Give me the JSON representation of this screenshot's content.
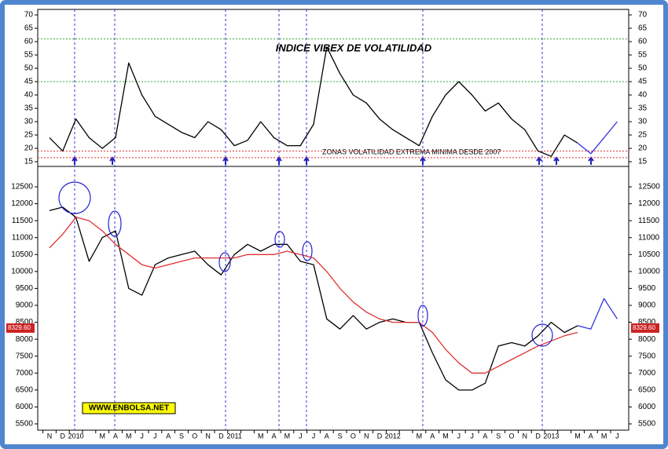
{
  "chart_data": [
    {
      "type": "line",
      "title": "INDICE VIBEX DE VOLATILIDAD",
      "annotation": "ZONAS VOLATILIDAD EXTREMA MINIMA DESDE 2007",
      "ylim": [
        15,
        70
      ],
      "yticks": [
        15,
        20,
        25,
        30,
        35,
        40,
        45,
        50,
        55,
        60,
        65,
        70
      ],
      "hlines": [
        {
          "value": 61,
          "color": "#33aa33"
        },
        {
          "value": 45,
          "color": "#33aa33"
        },
        {
          "value": 19,
          "color": "#dd3333"
        },
        {
          "value": 16.5,
          "color": "#dd3333"
        }
      ],
      "series": [
        {
          "color": "#000000",
          "values": [
            24,
            19,
            31,
            24,
            20,
            24,
            52,
            40,
            32,
            29,
            26,
            24,
            30,
            27,
            21,
            23,
            30,
            24,
            21,
            21,
            29,
            58,
            48,
            40,
            37,
            31,
            27,
            24,
            21,
            32,
            40,
            45,
            40,
            34,
            37,
            31,
            27,
            19,
            17,
            25,
            22,
            null,
            null,
            null
          ]
        },
        {
          "color": "#3333dd",
          "values": [
            null,
            null,
            null,
            null,
            null,
            null,
            null,
            null,
            null,
            null,
            null,
            null,
            null,
            null,
            null,
            null,
            null,
            null,
            null,
            null,
            null,
            null,
            null,
            null,
            null,
            null,
            null,
            null,
            null,
            null,
            null,
            null,
            null,
            null,
            null,
            null,
            null,
            null,
            null,
            null,
            22,
            18,
            24,
            30
          ]
        }
      ]
    },
    {
      "type": "line",
      "credit": "WWW.ENBOLSA.NET",
      "last_price_label": "8329.60",
      "categories": [
        "N",
        "D",
        "2010",
        null,
        "M",
        "A",
        "M",
        "J",
        "J",
        "A",
        "S",
        "O",
        "N",
        "D",
        "2011",
        null,
        "M",
        "A",
        "M",
        "J",
        "J",
        "A",
        "S",
        "O",
        "N",
        "D",
        "2012",
        null,
        "M",
        "A",
        "M",
        "J",
        "J",
        "A",
        "S",
        "O",
        "N",
        "D",
        "2013",
        null,
        "M",
        "A",
        "M",
        "J"
      ],
      "ylim": [
        5500,
        12500
      ],
      "yticks": [
        5500,
        6000,
        6500,
        7000,
        7500,
        8000,
        8500,
        9000,
        9500,
        10000,
        10500,
        11000,
        11500,
        12000,
        12500
      ],
      "series": [
        {
          "color": "#000000",
          "values": [
            11800,
            11900,
            11600,
            10300,
            11000,
            11200,
            9500,
            9300,
            10200,
            10400,
            10500,
            10600,
            10200,
            9900,
            10500,
            10800,
            10600,
            10800,
            10800,
            10300,
            10200,
            8600,
            8300,
            8700,
            8300,
            8500,
            8600,
            8500,
            8500,
            7600,
            6800,
            6500,
            6500,
            6700,
            7800,
            7900,
            7800,
            8100,
            8500,
            8200,
            8400,
            null,
            null,
            null
          ]
        },
        {
          "color": "#e03030",
          "values": [
            10700,
            11100,
            11600,
            11500,
            11200,
            10800,
            10500,
            10200,
            10100,
            10200,
            10300,
            10400,
            10400,
            10400,
            10400,
            10500,
            10500,
            10500,
            10600,
            10500,
            10400,
            10000,
            9500,
            9100,
            8800,
            8600,
            8500,
            8500,
            8500,
            8200,
            7700,
            7300,
            7000,
            7000,
            7200,
            7400,
            7600,
            7800,
            7950,
            8100,
            8200,
            null,
            null,
            null
          ]
        },
        {
          "color": "#3333dd",
          "values": [
            null,
            null,
            null,
            null,
            null,
            null,
            null,
            null,
            null,
            null,
            null,
            null,
            null,
            null,
            null,
            null,
            null,
            null,
            null,
            null,
            null,
            null,
            null,
            null,
            null,
            null,
            null,
            null,
            null,
            null,
            null,
            null,
            null,
            null,
            null,
            null,
            null,
            null,
            null,
            null,
            8400,
            8300,
            9200,
            8600
          ]
        }
      ]
    }
  ]
}
